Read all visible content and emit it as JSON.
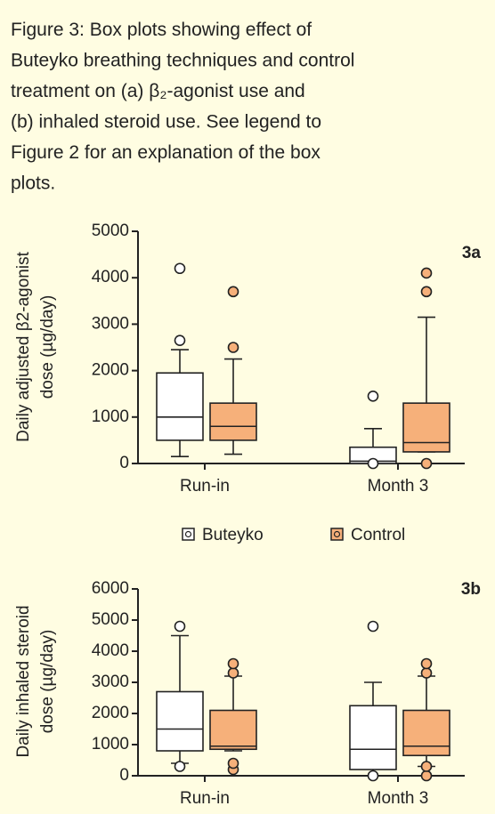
{
  "caption": [
    "Figure 3: Box plots showing effect of",
    "Buteyko breathing techniques and control",
    "treatment on (a) β₂-agonist use and",
    "(b) inhaled steroid use. See legend to",
    "Figure 2 for an explanation of the box",
    "plots."
  ],
  "legend": [
    {
      "name": "Buteyko",
      "color": "#ffffff"
    },
    {
      "name": "Control",
      "color": "#f6b07a"
    }
  ],
  "chart_data": [
    {
      "type": "box",
      "label": "3a",
      "ylabel": [
        "Daily adjusted β2-agonist",
        "dose (µg/day)"
      ],
      "categories": [
        "Run-in",
        "Month 3"
      ],
      "ylim": [
        0,
        5000
      ],
      "yticks": [
        0,
        1000,
        2000,
        3000,
        4000,
        5000
      ],
      "series": [
        {
          "values": [
            {
              "whislo": 150,
              "q1": 500,
              "med": 1000,
              "q3": 1950,
              "whishi": 2450,
              "fliers": [
                2650,
                4200
              ]
            },
            {
              "whislo": 0,
              "q1": 0,
              "med": 50,
              "q3": 350,
              "whishi": 750,
              "fliers": [
                0,
                1450
              ]
            }
          ]
        },
        {
          "values": [
            {
              "whislo": 200,
              "q1": 500,
              "med": 800,
              "q3": 1300,
              "whishi": 2250,
              "fliers": [
                2500,
                3700
              ]
            },
            {
              "whislo": 250,
              "q1": 250,
              "med": 450,
              "q3": 1300,
              "whishi": 3150,
              "fliers": [
                0,
                3700,
                4100
              ]
            }
          ]
        }
      ]
    },
    {
      "type": "box",
      "label": "3b",
      "ylabel": [
        "Daily inhaled steroid",
        "dose (µg/day)"
      ],
      "categories": [
        "Run-in",
        "Month 3"
      ],
      "ylim": [
        0,
        6000
      ],
      "yticks": [
        0,
        1000,
        2000,
        3000,
        4000,
        5000,
        6000
      ],
      "series": [
        {
          "values": [
            {
              "whislo": 400,
              "q1": 800,
              "med": 1500,
              "q3": 2700,
              "whishi": 4500,
              "fliers": [
                300,
                4800
              ]
            },
            {
              "whislo": 0,
              "q1": 200,
              "med": 850,
              "q3": 2250,
              "whishi": 3000,
              "fliers": [
                0,
                4800
              ]
            }
          ]
        },
        {
          "values": [
            {
              "whislo": 800,
              "q1": 850,
              "med": 950,
              "q3": 2100,
              "whishi": 3200,
              "fliers": [
                200,
                400,
                3300,
                3600
              ]
            },
            {
              "whislo": 300,
              "q1": 650,
              "med": 950,
              "q3": 2100,
              "whishi": 3200,
              "fliers": [
                0,
                300,
                3300,
                3600
              ]
            }
          ]
        }
      ]
    }
  ]
}
